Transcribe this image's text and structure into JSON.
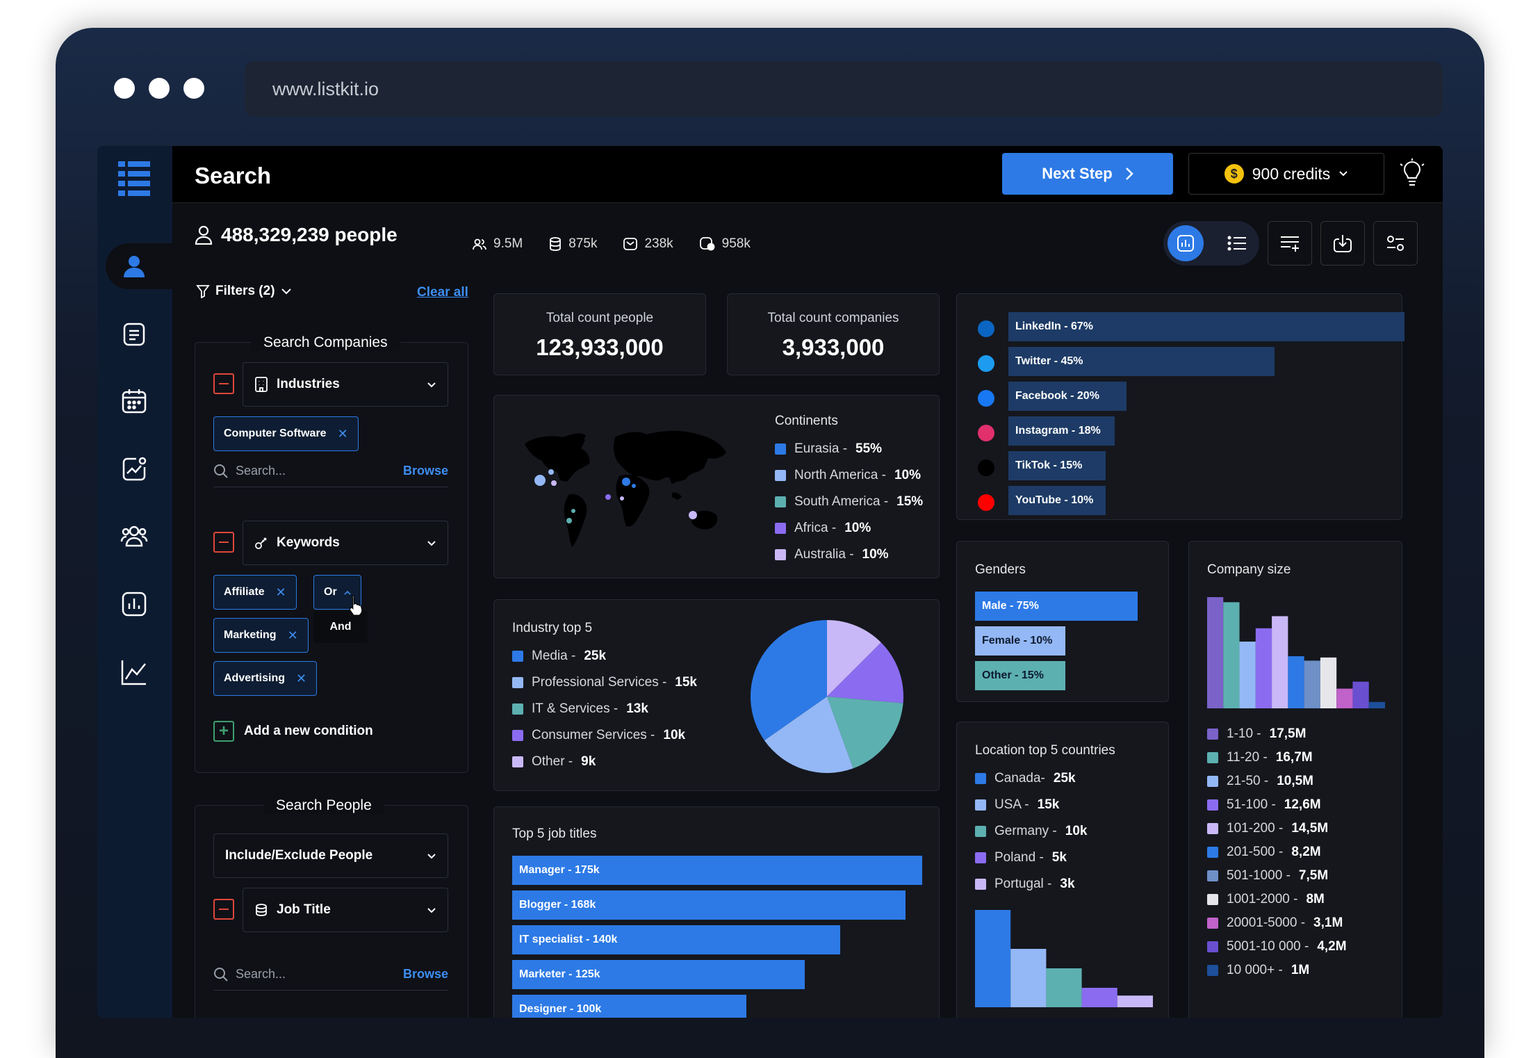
{
  "browser": {
    "url": "www.listkit.io"
  },
  "topbar": {
    "title": "Search",
    "next_step": "Next Step",
    "credits": "900 credits",
    "coin_symbol": "$"
  },
  "summary": {
    "people": "488,329,239 people",
    "stats": [
      "9.5M",
      "875k",
      "238k",
      "958k"
    ],
    "filters_label": "Filters (2)",
    "clear_all": "Clear all"
  },
  "search_companies": {
    "title": "Search Companies",
    "industries_label": "Industries",
    "industry_chip": "Computer Software",
    "search_placeholder": "Search...",
    "browse": "Browse",
    "keywords_label": "Keywords",
    "keyword_chips": [
      "Affiliate",
      "Marketing",
      "Advertising"
    ],
    "operator": "Or",
    "operator_option": "And",
    "add_condition": "Add a new condition"
  },
  "search_people": {
    "title": "Search People",
    "include_exclude": "Include/Exclude People",
    "job_title_label": "Job Title",
    "search_placeholder": "Search...",
    "browse": "Browse"
  },
  "totals": {
    "people_label": "Total count people",
    "people_value": "123,933,000",
    "companies_label": "Total count companies",
    "companies_value": "3,933,000"
  },
  "continents": {
    "title": "Continents",
    "items": [
      {
        "label": "Eurasia - ",
        "value": "55%",
        "color": "#2d7ae6"
      },
      {
        "label": "North America - ",
        "value": "10%",
        "color": "#94b8f5"
      },
      {
        "label": "South America - ",
        "value": "15%",
        "color": "#5db0b0"
      },
      {
        "label": "Africa - ",
        "value": "10%",
        "color": "#8b6cf0"
      },
      {
        "label": "Australia - ",
        "value": "10%",
        "color": "#c9b8f7"
      }
    ]
  },
  "industry_top5": {
    "title": "Industry top 5",
    "items": [
      {
        "label": "Media - ",
        "value": "25k",
        "color": "#2d7ae6"
      },
      {
        "label": "Professional Services - ",
        "value": "15k",
        "color": "#94b8f5"
      },
      {
        "label": "IT & Services - ",
        "value": "13k",
        "color": "#5db0b0"
      },
      {
        "label": "Consumer Services - ",
        "value": "10k",
        "color": "#8b6cf0"
      },
      {
        "label": "Other - ",
        "value": "9k",
        "color": "#c9b8f7"
      }
    ]
  },
  "job_titles": {
    "title": "Top 5 job titles",
    "items": [
      {
        "label": "Manager - 175k",
        "value": 175
      },
      {
        "label": "Blogger - 168k",
        "value": 168
      },
      {
        "label": "IT specialist - 140k",
        "value": 140
      },
      {
        "label": "Marketer - 125k",
        "value": 125
      },
      {
        "label": "Designer - 100k",
        "value": 100
      }
    ]
  },
  "social": {
    "items": [
      {
        "label": "LinkedIn - 67%",
        "value": 67,
        "icon": "linkedin-icon",
        "color": "#0a66c2"
      },
      {
        "label": "Twitter - 45%",
        "value": 45,
        "icon": "twitter-icon",
        "color": "#1d9bf0"
      },
      {
        "label": "Facebook - 20%",
        "value": 20,
        "icon": "facebook-icon",
        "color": "#1877f2"
      },
      {
        "label": "Instagram - 18%",
        "value": 18,
        "icon": "instagram-icon",
        "color": "#e1306c"
      },
      {
        "label": "TikTok - 15%",
        "value": 15,
        "icon": "tiktok-icon",
        "color": "#000000"
      },
      {
        "label": "YouTube - 10%",
        "value": 10,
        "icon": "youtube-icon",
        "color": "#ff0000"
      }
    ]
  },
  "genders": {
    "title": "Genders",
    "items": [
      {
        "label": "Male - 75%",
        "value": 75,
        "color": "#2d7ae6"
      },
      {
        "label": "Female - 10%",
        "value": 10,
        "color": "#94b8f5"
      },
      {
        "label": "Other - 15%",
        "value": 15,
        "color": "#5db0b0"
      }
    ]
  },
  "locations": {
    "title": "Location top 5 countries",
    "items": [
      {
        "label": "Canada- ",
        "value": "25k",
        "color": "#2d7ae6"
      },
      {
        "label": "USA - ",
        "value": "15k",
        "color": "#94b8f5"
      },
      {
        "label": "Germany - ",
        "value": "10k",
        "color": "#5db0b0"
      },
      {
        "label": "Poland - ",
        "value": "5k",
        "color": "#8b6cf0"
      },
      {
        "label": "Portugal - ",
        "value": "3k",
        "color": "#c9b8f7"
      }
    ]
  },
  "company_size": {
    "title": "Company size",
    "items": [
      {
        "label": "1-10 - ",
        "value": "17,5M",
        "num": 17.5,
        "color": "#7b62c9"
      },
      {
        "label": "11-20 - ",
        "value": "16,7M",
        "num": 16.7,
        "color": "#5db0b0"
      },
      {
        "label": "21-50 - ",
        "value": "10,5M",
        "num": 10.5,
        "color": "#94b8f5"
      },
      {
        "label": "51-100 - ",
        "value": "12,6M",
        "num": 12.6,
        "color": "#8b6cf0"
      },
      {
        "label": "101-200 - ",
        "value": "14,5M",
        "num": 14.5,
        "color": "#c9b8f7"
      },
      {
        "label": "201-500 - ",
        "value": "8,2M",
        "num": 8.2,
        "color": "#2d7ae6"
      },
      {
        "label": "501-1000 - ",
        "value": "7,5M",
        "num": 7.5,
        "color": "#6f8fc7"
      },
      {
        "label": "1001-2000 - ",
        "value": "8M",
        "num": 8,
        "color": "#e6e6ea"
      },
      {
        "label": "20001-5000 - ",
        "value": "3,1M",
        "num": 3.1,
        "color": "#c062c9"
      },
      {
        "label": "5001-10 000 - ",
        "value": "4,2M",
        "num": 4.2,
        "color": "#6a4fd0"
      },
      {
        "label": "10 000+ - ",
        "value": "1M",
        "num": 1,
        "color": "#1d4f9a"
      }
    ]
  },
  "chart_data": [
    {
      "type": "pie",
      "title": "Industry top 5",
      "categories": [
        "Media",
        "Professional Services",
        "IT & Services",
        "Consumer Services",
        "Other"
      ],
      "values": [
        25,
        15,
        13,
        10,
        9
      ]
    },
    {
      "type": "bar",
      "title": "Location top 5 countries",
      "categories": [
        "Canada",
        "USA",
        "Germany",
        "Poland",
        "Portugal"
      ],
      "values": [
        25,
        15,
        10,
        5,
        3
      ]
    },
    {
      "type": "bar",
      "title": "Company size",
      "categories": [
        "1-10",
        "11-20",
        "21-50",
        "51-100",
        "101-200",
        "201-500",
        "501-1000",
        "1001-2000",
        "20001-5000",
        "5001-10 000",
        "10 000+"
      ],
      "values": [
        17.5,
        16.7,
        10.5,
        12.6,
        14.5,
        8.2,
        7.5,
        8,
        3.1,
        4.2,
        1
      ]
    }
  ]
}
